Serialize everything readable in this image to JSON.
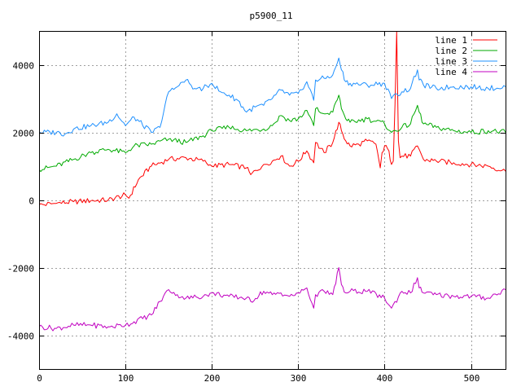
{
  "chart_data": {
    "type": "line",
    "title": "p5900_11",
    "xlabel": "",
    "ylabel": "",
    "xlim": [
      0,
      540
    ],
    "ylim": [
      -5000,
      5000
    ],
    "xticks": [
      0,
      100,
      200,
      300,
      400,
      500
    ],
    "yticks": [
      -4000,
      -2000,
      0,
      2000,
      4000
    ],
    "xtick_labels": [
      "0",
      "100",
      "200",
      "300",
      "400",
      "500"
    ],
    "ytick_labels": [
      "-4000",
      "-2000",
      "0",
      "2000",
      "4000"
    ],
    "grid": true,
    "legend_position": "top-right",
    "series": [
      {
        "name": "line 1",
        "color": "#ff0000",
        "x": [
          0,
          20,
          40,
          60,
          80,
          100,
          104,
          115,
          130,
          150,
          170,
          190,
          200,
          220,
          240,
          245,
          260,
          270,
          280,
          290,
          300,
          310,
          318,
          320,
          330,
          340,
          347,
          350,
          355,
          360,
          370,
          380,
          390,
          395,
          397,
          400,
          405,
          408,
          410,
          412,
          414,
          416,
          418,
          420,
          430,
          438,
          440,
          445,
          460,
          480,
          500,
          520,
          540
        ],
        "y": [
          -150,
          -100,
          -50,
          -20,
          0,
          150,
          50,
          600,
          1000,
          1200,
          1250,
          1150,
          1000,
          1050,
          950,
          750,
          1050,
          1150,
          1300,
          1000,
          1150,
          1450,
          1100,
          1700,
          1400,
          1700,
          2300,
          2050,
          1750,
          1600,
          1650,
          1750,
          1650,
          950,
          1400,
          1600,
          1450,
          1050,
          1150,
          2800,
          5000,
          1750,
          1250,
          1300,
          1300,
          1600,
          1500,
          1200,
          1150,
          1100,
          1050,
          1000,
          850
        ]
      },
      {
        "name": "line 2",
        "color": "#00aa00",
        "x": [
          0,
          20,
          40,
          60,
          80,
          100,
          110,
          130,
          150,
          170,
          190,
          200,
          220,
          240,
          260,
          270,
          280,
          290,
          300,
          310,
          318,
          320,
          330,
          340,
          347,
          350,
          355,
          360,
          380,
          400,
          408,
          420,
          430,
          438,
          440,
          445,
          460,
          480,
          500,
          520,
          540
        ],
        "y": [
          900,
          1000,
          1200,
          1400,
          1500,
          1400,
          1600,
          1650,
          1800,
          1700,
          1900,
          2050,
          2150,
          2050,
          2100,
          2200,
          2500,
          2350,
          2400,
          2650,
          2200,
          2700,
          2550,
          2600,
          3100,
          2700,
          2400,
          2300,
          2400,
          2250,
          2000,
          2150,
          2250,
          2800,
          2600,
          2250,
          2150,
          2050,
          2000,
          2050,
          2000
        ]
      },
      {
        "name": "line 3",
        "color": "#1e90ff",
        "x": [
          0,
          20,
          30,
          40,
          60,
          80,
          90,
          100,
          110,
          130,
          140,
          150,
          160,
          170,
          180,
          190,
          200,
          210,
          220,
          230,
          240,
          250,
          260,
          270,
          280,
          290,
          300,
          310,
          318,
          320,
          330,
          340,
          347,
          350,
          355,
          360,
          380,
          400,
          408,
          420,
          430,
          438,
          440,
          445,
          460,
          480,
          500,
          520,
          540
        ],
        "y": [
          2000,
          2000,
          1950,
          2100,
          2200,
          2300,
          2550,
          2200,
          2450,
          2000,
          2150,
          3200,
          3350,
          3550,
          3300,
          3300,
          3450,
          3200,
          3100,
          2950,
          2600,
          2750,
          2800,
          3000,
          3250,
          3100,
          3150,
          3500,
          2950,
          3550,
          3600,
          3700,
          4200,
          3850,
          3500,
          3450,
          3400,
          3450,
          3000,
          3200,
          3300,
          3850,
          3550,
          3400,
          3300,
          3350,
          3350,
          3300,
          3350
        ]
      },
      {
        "name": "line 4",
        "color": "#c000c0",
        "x": [
          0,
          20,
          40,
          60,
          80,
          100,
          110,
          130,
          140,
          150,
          160,
          170,
          190,
          200,
          220,
          240,
          245,
          260,
          270,
          280,
          290,
          300,
          310,
          318,
          320,
          330,
          340,
          347,
          350,
          355,
          360,
          380,
          400,
          408,
          420,
          430,
          438,
          440,
          445,
          460,
          480,
          500,
          520,
          540
        ],
        "y": [
          -3750,
          -3800,
          -3700,
          -3700,
          -3750,
          -3700,
          -3600,
          -3400,
          -3000,
          -2650,
          -2800,
          -2900,
          -2850,
          -2750,
          -2850,
          -2900,
          -3000,
          -2700,
          -2800,
          -2750,
          -2850,
          -2750,
          -2600,
          -3200,
          -2800,
          -2700,
          -2800,
          -2000,
          -2500,
          -2750,
          -2700,
          -2700,
          -2900,
          -3200,
          -2700,
          -2750,
          -2300,
          -2600,
          -2750,
          -2800,
          -2850,
          -2850,
          -2900,
          -2650
        ]
      }
    ]
  }
}
